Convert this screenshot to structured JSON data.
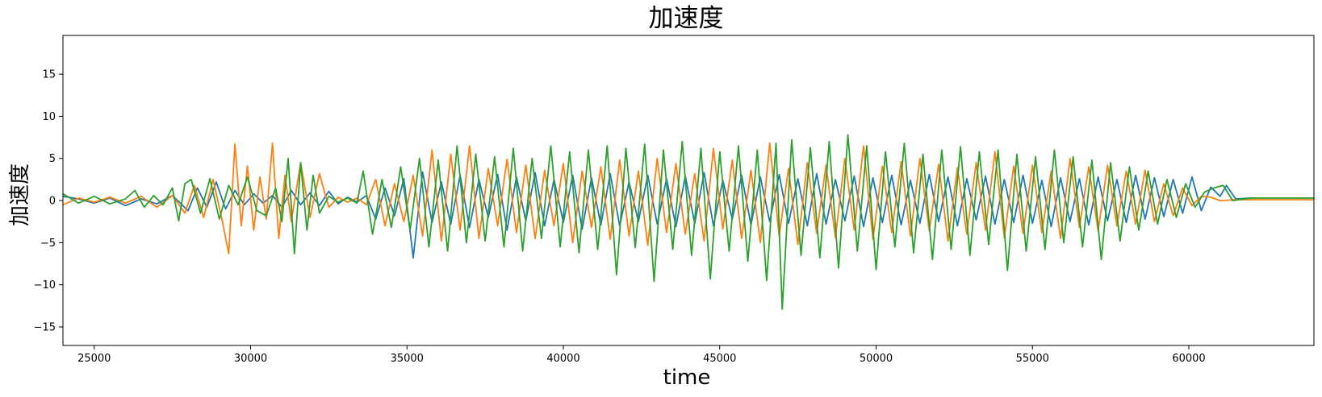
{
  "chart_data": {
    "type": "line",
    "title": "加速度",
    "xlabel": "time",
    "ylabel": "加速度",
    "xlim": [
      24000,
      64000
    ],
    "ylim": [
      -17.2,
      19.6
    ],
    "x_ticks": [
      25000,
      30000,
      35000,
      40000,
      45000,
      50000,
      55000,
      60000
    ],
    "x_tick_labels": [
      "25000",
      "30000",
      "35000",
      "40000",
      "45000",
      "50000",
      "55000",
      "60000"
    ],
    "y_ticks": [
      -15,
      -10,
      -5,
      0,
      5,
      10,
      15
    ],
    "y_tick_labels": [
      "−15",
      "−10",
      "−5",
      "0",
      "5",
      "10",
      "15"
    ],
    "grid": false,
    "legend": "none",
    "series": [
      {
        "color": "#1f77b4",
        "x": [
          24000,
          24500,
          25000,
          25500,
          26000,
          26500,
          27000,
          27500,
          28000,
          28300,
          28600,
          28900,
          29200,
          29500,
          29800,
          30100,
          30400,
          30700,
          31000,
          31300,
          31600,
          31900,
          32200,
          32500,
          32800,
          33100,
          33400,
          33700,
          34000,
          34300,
          34600,
          34900,
          35200,
          35500,
          35800,
          36100,
          36400,
          36700,
          37000,
          37300,
          37600,
          37900,
          38200,
          38500,
          38800,
          39100,
          39400,
          39700,
          40000,
          40300,
          40600,
          40900,
          41200,
          41500,
          41800,
          42100,
          42400,
          42700,
          43000,
          43300,
          43600,
          43900,
          44200,
          44500,
          44800,
          45100,
          45400,
          45700,
          46000,
          46300,
          46600,
          46900,
          47200,
          47500,
          47800,
          48100,
          48400,
          48700,
          49000,
          49300,
          49600,
          49900,
          50200,
          50500,
          50800,
          51100,
          51400,
          51700,
          52000,
          52300,
          52600,
          52900,
          53200,
          53500,
          53800,
          54100,
          54400,
          54700,
          55000,
          55300,
          55600,
          55900,
          56200,
          56500,
          56800,
          57100,
          57400,
          57700,
          58000,
          58300,
          58600,
          58900,
          59200,
          59500,
          59800,
          60100,
          60400,
          60700,
          61000,
          61200,
          61500,
          62000,
          62500,
          63000,
          63500,
          64000
        ],
        "values": [
          0.5,
          0.2,
          -0.3,
          0.3,
          -0.6,
          0.2,
          -0.4,
          0.6,
          -1.2,
          1.5,
          -0.8,
          2.2,
          -1.0,
          1.2,
          -0.5,
          0.8,
          -0.3,
          0.6,
          -0.8,
          1.2,
          -0.5,
          0.9,
          -0.6,
          1.1,
          -0.4,
          0.4,
          -0.2,
          0.6,
          -2.2,
          1.5,
          -1.8,
          2.6,
          -6.8,
          3.4,
          -2.6,
          2.2,
          -2.8,
          3.0,
          -3.2,
          2.5,
          -2.0,
          3.1,
          -3.5,
          2.8,
          -2.4,
          3.3,
          -3.0,
          2.5,
          -2.6,
          3.0,
          -3.4,
          2.7,
          -2.9,
          3.2,
          -3.0,
          2.2,
          -2.5,
          3.0,
          -2.8,
          2.6,
          -3.1,
          2.9,
          -2.7,
          3.3,
          -3.0,
          2.4,
          -2.2,
          3.0,
          -2.9,
          2.8,
          -2.5,
          3.1,
          -2.7,
          2.6,
          -3.0,
          3.2,
          -2.8,
          2.5,
          -2.4,
          2.9,
          -3.1,
          2.7,
          -2.6,
          3.0,
          -2.9,
          2.4,
          -2.7,
          3.1,
          -2.5,
          2.8,
          -3.0,
          2.6,
          -2.3,
          2.9,
          -2.8,
          2.5,
          -2.6,
          3.0,
          -2.7,
          2.4,
          -3.1,
          2.7,
          -2.5,
          2.6,
          -2.9,
          2.8,
          -2.4,
          2.5,
          -2.6,
          3.0,
          -2.2,
          2.7,
          -1.9,
          2.5,
          -1.5,
          2.8,
          -1.2,
          1.6,
          0.5,
          1.8,
          0.2,
          0.3,
          0.3,
          0.3,
          0.3,
          0.3
        ]
      },
      {
        "color": "#ff7f0e",
        "x": [
          24000,
          24500,
          25000,
          25500,
          26000,
          26500,
          27000,
          27500,
          27900,
          28200,
          28500,
          28800,
          29100,
          29300,
          29500,
          29700,
          29900,
          30100,
          30300,
          30500,
          30700,
          30900,
          31100,
          31300,
          31600,
          31900,
          32200,
          32500,
          32800,
          33100,
          33400,
          33700,
          34000,
          34300,
          34600,
          34900,
          35200,
          35500,
          35800,
          36100,
          36400,
          36700,
          37000,
          37300,
          37600,
          37900,
          38200,
          38500,
          38800,
          39100,
          39400,
          39700,
          40000,
          40300,
          40600,
          40900,
          41200,
          41500,
          41800,
          42100,
          42400,
          42700,
          43000,
          43300,
          43600,
          43900,
          44200,
          44500,
          44800,
          45100,
          45400,
          45700,
          46000,
          46300,
          46600,
          46900,
          47200,
          47500,
          47800,
          48100,
          48400,
          48700,
          49000,
          49300,
          49600,
          49900,
          50200,
          50500,
          50800,
          51100,
          51400,
          51700,
          52000,
          52300,
          52600,
          52900,
          53200,
          53500,
          53800,
          54100,
          54400,
          54700,
          55000,
          55300,
          55600,
          55900,
          56200,
          56500,
          56800,
          57100,
          57400,
          57700,
          58000,
          58300,
          58600,
          58900,
          59200,
          59500,
          59800,
          60100,
          60400,
          60700,
          61000,
          61500,
          62000,
          62500,
          63000,
          63500,
          64000
        ],
        "values": [
          -0.5,
          0.3,
          -0.2,
          0.4,
          -0.3,
          0.5,
          -0.8,
          0.6,
          -1.5,
          1.8,
          -2.0,
          2.5,
          -2.5,
          -6.3,
          6.7,
          -3.0,
          4.1,
          -3.5,
          2.8,
          -2.2,
          6.8,
          -4.5,
          3.0,
          -2.5,
          4.5,
          -2.0,
          3.2,
          -0.8,
          0.4,
          -0.2,
          0.3,
          -0.5,
          2.5,
          -3.0,
          2.0,
          -2.5,
          3.0,
          -4.2,
          6.0,
          -4.8,
          5.5,
          -3.5,
          6.5,
          -4.5,
          3.8,
          -3.0,
          4.9,
          -3.8,
          4.2,
          -4.5,
          3.6,
          -3.0,
          4.4,
          -5.0,
          3.5,
          -3.2,
          4.0,
          -4.6,
          4.8,
          -4.2,
          3.5,
          -5.3,
          5.0,
          -3.8,
          4.4,
          -4.0,
          3.2,
          -4.8,
          6.2,
          -3.4,
          4.8,
          -4.5,
          3.6,
          -5.0,
          6.8,
          -4.2,
          3.8,
          -5.2,
          4.5,
          -3.9,
          4.2,
          -4.4,
          5.0,
          -3.5,
          6.5,
          -4.6,
          4.1,
          -3.8,
          4.6,
          -4.2,
          5.0,
          -3.6,
          4.3,
          -4.8,
          3.9,
          -4.0,
          4.5,
          -3.5,
          5.8,
          -4.4,
          4.1,
          -3.9,
          4.2,
          -3.8,
          3.5,
          -4.5,
          5.0,
          -3.2,
          4.0,
          -3.6,
          4.2,
          -3.0,
          3.5,
          -2.8,
          3.6,
          -2.5,
          2.0,
          -1.8,
          1.5,
          -0.6,
          0.5,
          0.4,
          0.0,
          0.1,
          0.1,
          0.1,
          0.1,
          0.1,
          0.1
        ]
      },
      {
        "color": "#2ca02c",
        "x": [
          24000,
          24500,
          25000,
          25500,
          26000,
          26300,
          26600,
          26900,
          27200,
          27500,
          27700,
          27900,
          28100,
          28400,
          28700,
          29000,
          29300,
          29600,
          29900,
          30200,
          30500,
          30800,
          31000,
          31200,
          31400,
          31600,
          31800,
          32000,
          32200,
          32500,
          32800,
          33100,
          33400,
          33600,
          33900,
          34200,
          34500,
          34800,
          35100,
          35400,
          35700,
          36000,
          36300,
          36600,
          36900,
          37200,
          37500,
          37800,
          38100,
          38400,
          38700,
          39000,
          39300,
          39600,
          39900,
          40200,
          40500,
          40800,
          41100,
          41400,
          41700,
          42000,
          42300,
          42600,
          42900,
          43200,
          43500,
          43800,
          44100,
          44400,
          44700,
          45000,
          45300,
          45600,
          45900,
          46200,
          46500,
          46800,
          47000,
          47300,
          47600,
          47900,
          48200,
          48500,
          48800,
          49100,
          49400,
          49700,
          50000,
          50300,
          50600,
          50900,
          51200,
          51500,
          51800,
          52100,
          52400,
          52700,
          53000,
          53300,
          53600,
          53900,
          54200,
          54500,
          54800,
          55100,
          55400,
          55700,
          56000,
          56300,
          56600,
          56900,
          57200,
          57500,
          57800,
          58100,
          58400,
          58700,
          59000,
          59300,
          59600,
          59900,
          60200,
          60500,
          60800,
          61100,
          61400,
          62000,
          62500,
          63000,
          63500,
          64000
        ],
        "values": [
          0.8,
          -0.3,
          0.5,
          -0.4,
          0.2,
          1.2,
          -0.8,
          0.6,
          -0.5,
          1.5,
          -2.4,
          2.0,
          2.5,
          -1.5,
          2.6,
          -2.2,
          1.8,
          -0.5,
          2.8,
          -1.2,
          -1.8,
          1.5,
          -2.5,
          5.0,
          -6.3,
          4.5,
          -3.5,
          3.0,
          -1.5,
          0.5,
          -0.2,
          0.3,
          -0.3,
          3.5,
          -4.0,
          2.5,
          -3.2,
          4.0,
          -3.5,
          5.0,
          -5.5,
          4.8,
          -6.0,
          6.5,
          -5.0,
          5.5,
          -4.8,
          5.2,
          -5.5,
          6.2,
          -6.0,
          5.0,
          -4.5,
          6.5,
          -5.5,
          5.8,
          -6.2,
          6.0,
          -5.8,
          6.5,
          -8.8,
          6.2,
          -5.6,
          6.7,
          -9.6,
          6.0,
          -5.8,
          7.0,
          -6.5,
          6.2,
          -9.3,
          5.8,
          -6.0,
          6.5,
          -7.2,
          6.0,
          -9.5,
          6.8,
          -12.9,
          7.2,
          -6.5,
          6.3,
          -6.8,
          7.0,
          -8.0,
          7.8,
          -6.0,
          6.5,
          -8.2,
          5.8,
          -5.5,
          6.8,
          -6.2,
          5.5,
          -7.0,
          6.0,
          -5.8,
          6.4,
          -6.5,
          5.8,
          -5.2,
          6.0,
          -8.3,
          5.5,
          -6.0,
          5.2,
          -5.8,
          6.0,
          -5.0,
          5.2,
          -5.5,
          4.8,
          -7.0,
          4.5,
          -4.8,
          4.0,
          -3.5,
          3.5,
          -2.8,
          2.5,
          -2.0,
          2.0,
          -0.8,
          1.0,
          1.5,
          1.8,
          0.0,
          0.3,
          0.3,
          0.3,
          0.3,
          0.3
        ]
      }
    ]
  }
}
